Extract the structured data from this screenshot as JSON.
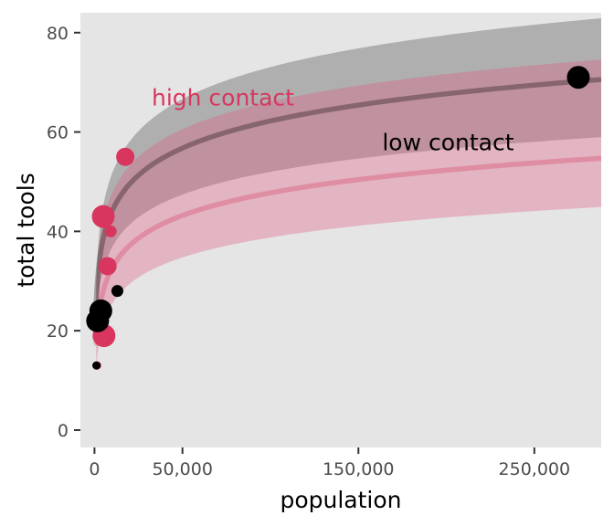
{
  "chart_data": {
    "type": "scatter",
    "xlabel": "population",
    "ylabel": "total tools",
    "xlim": [
      -8000,
      288000
    ],
    "ylim": [
      -3.5,
      84
    ],
    "x_ticks": [
      {
        "value": 0,
        "label": "0"
      },
      {
        "value": 50000,
        "label": "50,000"
      },
      {
        "value": 150000,
        "label": "150,000"
      },
      {
        "value": 250000,
        "label": "250,000"
      }
    ],
    "y_ticks": [
      {
        "value": 0,
        "label": "0"
      },
      {
        "value": 20,
        "label": "20"
      },
      {
        "value": 40,
        "label": "40"
      },
      {
        "value": 60,
        "label": "60"
      },
      {
        "value": 80,
        "label": "80"
      }
    ],
    "grid": false,
    "series": [
      {
        "name": "high contact",
        "color": "#d8365f",
        "band_color": "#e05a7d",
        "points": [
          {
            "x": 5400,
            "y": 19,
            "size": "large"
          },
          {
            "x": 1500,
            "y": 13,
            "size": "tiny"
          },
          {
            "x": 7400,
            "y": 33,
            "size": "medium"
          },
          {
            "x": 5000,
            "y": 43,
            "size": "large"
          },
          {
            "x": 9200,
            "y": 40,
            "size": "small"
          },
          {
            "x": 17500,
            "y": 55,
            "size": "medium"
          }
        ],
        "fit": {
          "a": -28,
          "b": 6.58,
          "x_max": 290000
        },
        "band": {
          "a_lo": -28,
          "b_lo": 5.8,
          "a_hi": -26,
          "b_hi": 8.0
        }
      },
      {
        "name": "low contact",
        "color": "#000000",
        "band_color": "#4a4a4a",
        "points": [
          {
            "x": 1100,
            "y": 13,
            "size": "tiny"
          },
          {
            "x": 1800,
            "y": 22,
            "size": "large"
          },
          {
            "x": 3600,
            "y": 24,
            "size": "large"
          },
          {
            "x": 13000,
            "y": 28,
            "size": "small"
          },
          {
            "x": 275000,
            "y": 71,
            "size": "large"
          }
        ],
        "fit": {
          "a": -28.5,
          "b": 7.88,
          "x_max": 290000
        },
        "band": {
          "a_lo": -24,
          "b_lo": 6.6,
          "a_hi": -34,
          "b_hi": 9.3
        }
      }
    ],
    "annotations": [
      {
        "text": "high contact",
        "series": 0,
        "x": 73000,
        "y": 67
      },
      {
        "text": "low contact",
        "series": 1,
        "x": 201000,
        "y": 58
      }
    ]
  }
}
